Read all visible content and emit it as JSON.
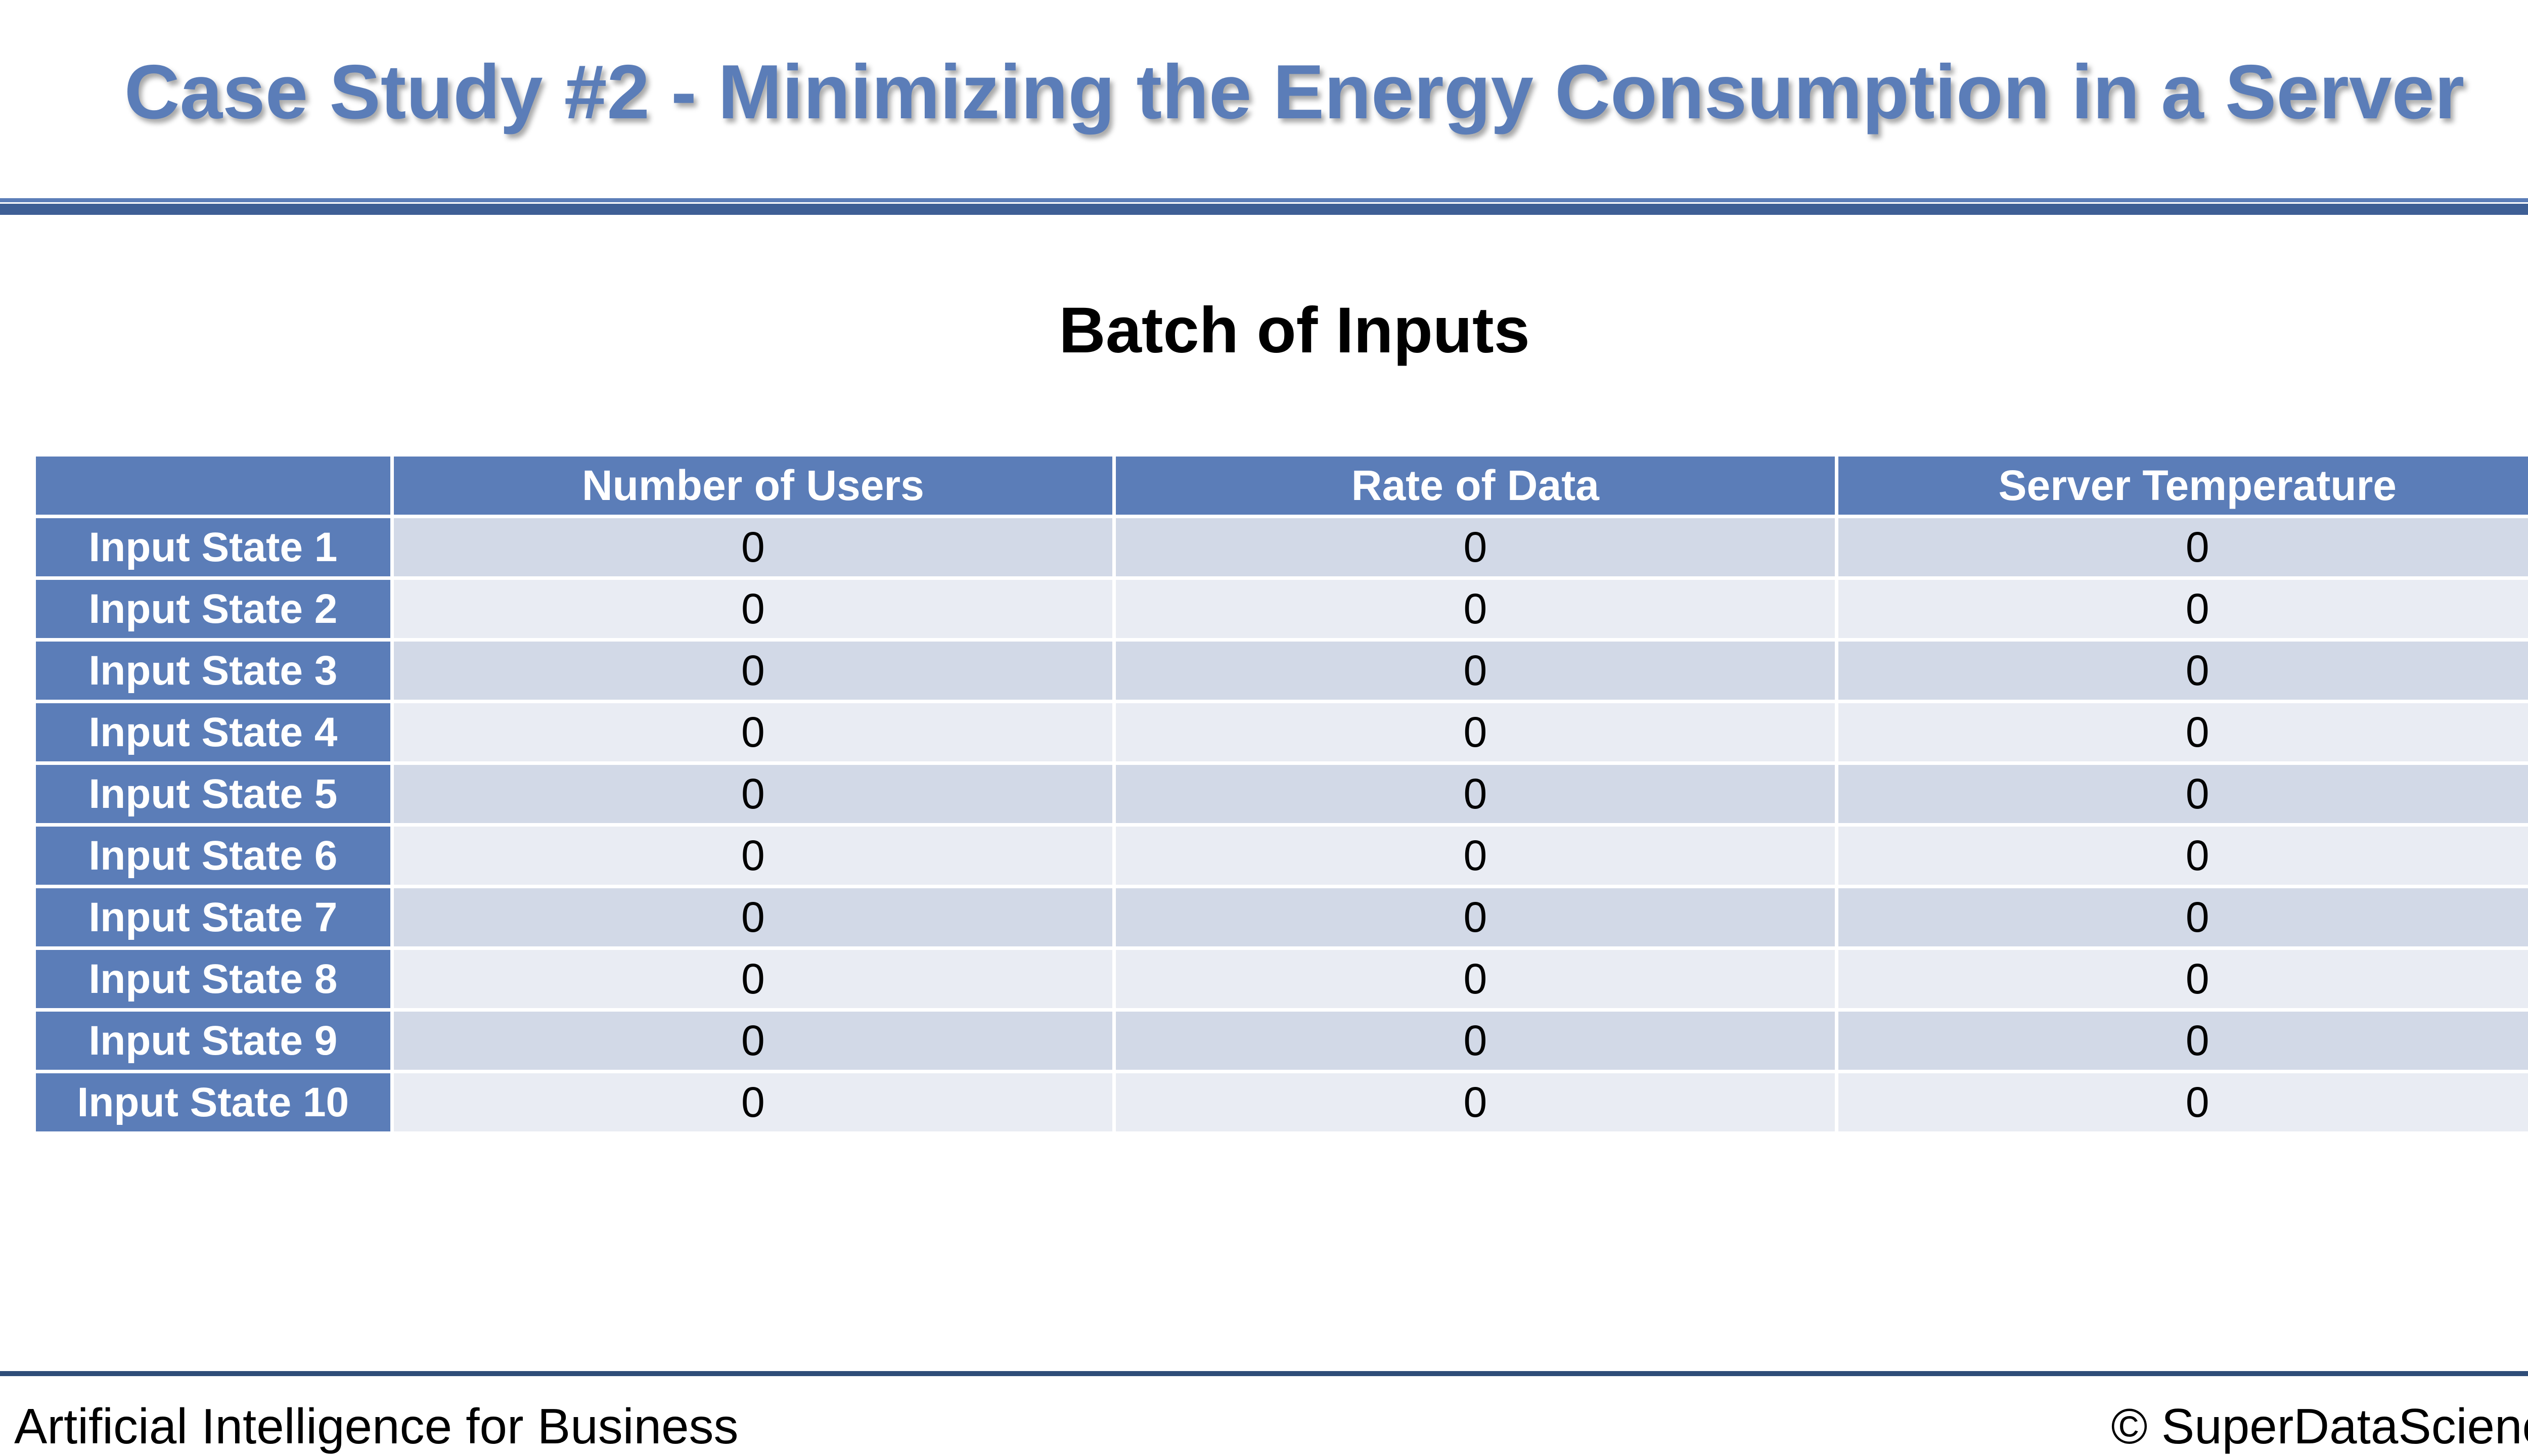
{
  "slide": {
    "title": "Case Study #2 - Minimizing the Energy Consumption in a Server",
    "heading": "Batch of Inputs"
  },
  "table": {
    "corner": "",
    "columns": [
      "Number of Users",
      "Rate of Data",
      "Server Temperature"
    ],
    "rows": [
      {
        "label": "Input State 1",
        "values": [
          "0",
          "0",
          "0"
        ]
      },
      {
        "label": "Input State 2",
        "values": [
          "0",
          "0",
          "0"
        ]
      },
      {
        "label": "Input State 3",
        "values": [
          "0",
          "0",
          "0"
        ]
      },
      {
        "label": "Input State 4",
        "values": [
          "0",
          "0",
          "0"
        ]
      },
      {
        "label": "Input State 5",
        "values": [
          "0",
          "0",
          "0"
        ]
      },
      {
        "label": "Input State 6",
        "values": [
          "0",
          "0",
          "0"
        ]
      },
      {
        "label": "Input State 7",
        "values": [
          "0",
          "0",
          "0"
        ]
      },
      {
        "label": "Input State 8",
        "values": [
          "0",
          "0",
          "0"
        ]
      },
      {
        "label": "Input State 9",
        "values": [
          "0",
          "0",
          "0"
        ]
      },
      {
        "label": "Input State 10",
        "values": [
          "0",
          "0",
          "0"
        ]
      }
    ]
  },
  "footer": {
    "course": "Artificial Intelligence for Business",
    "copyright": "© SuperDataScience"
  },
  "colors": {
    "accent": "#5b7db8",
    "accent_dark": "#3e5f95",
    "row_odd": "#d2d9e7",
    "row_even": "#e9ecf3"
  }
}
